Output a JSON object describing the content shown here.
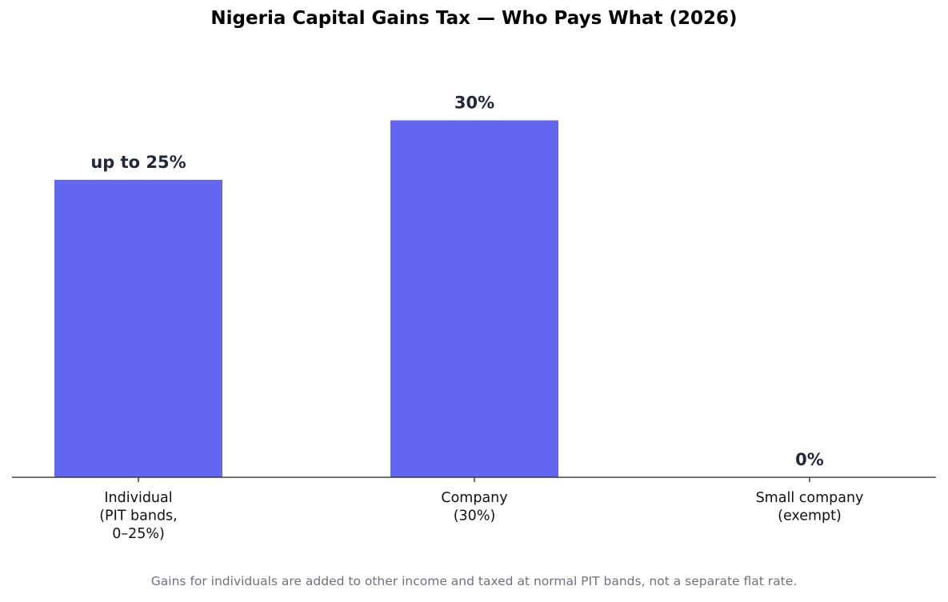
{
  "chart_data": {
    "type": "bar",
    "title": "Nigeria Capital Gains Tax — Who Pays What (2026)",
    "categories": [
      [
        "Individual",
        "(PIT bands,",
        "0–25%)"
      ],
      [
        "Company",
        "(30%)"
      ],
      [
        "Small company",
        "(exempt)"
      ]
    ],
    "values": [
      25,
      30,
      0
    ],
    "data_labels": [
      "up to 25%",
      "30%",
      "0%"
    ],
    "ylim": [
      0,
      36.75
    ],
    "xlabel": "",
    "ylabel": "",
    "grid": false,
    "bar_color": "#6366f1",
    "label_color": "#1e293b"
  },
  "footnote": "Gains for individuals are added to other income and taxed at normal PIT bands, not a separate flat rate."
}
